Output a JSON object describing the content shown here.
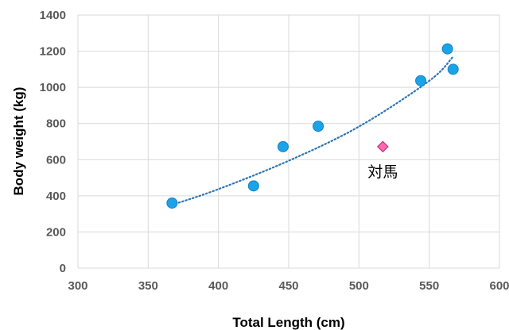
{
  "chart_data": {
    "type": "scatter",
    "xlabel": "Total Length (cm)",
    "ylabel": "Body weight (kg)",
    "xlim": [
      300,
      600
    ],
    "ylim": [
      0,
      1400
    ],
    "x_ticks": [
      300,
      350,
      400,
      450,
      500,
      550,
      600
    ],
    "y_ticks": [
      0,
      200,
      400,
      600,
      800,
      1000,
      1200,
      1400
    ],
    "grid": true,
    "legend": "none",
    "series": [
      {
        "marker": "circle",
        "color": "#1aa3e8",
        "points": [
          {
            "x": 367,
            "y": 360
          },
          {
            "x": 425,
            "y": 455
          },
          {
            "x": 446,
            "y": 672
          },
          {
            "x": 471,
            "y": 785
          },
          {
            "x": 544,
            "y": 1037
          },
          {
            "x": 563,
            "y": 1213
          },
          {
            "x": 567,
            "y": 1100
          }
        ]
      },
      {
        "marker": "diamond",
        "color": "#ff6ab0",
        "label": "対馬",
        "points": [
          {
            "x": 517,
            "y": 672
          }
        ]
      }
    ],
    "trendline": {
      "style": "dotted",
      "color": "#2e75b6",
      "x_range": [
        367,
        567
      ],
      "points": [
        {
          "x": 367,
          "y": 350
        },
        {
          "x": 400,
          "y": 437
        },
        {
          "x": 450,
          "y": 594
        },
        {
          "x": 500,
          "y": 783
        },
        {
          "x": 550,
          "y": 1036
        },
        {
          "x": 567,
          "y": 1170
        }
      ]
    }
  }
}
